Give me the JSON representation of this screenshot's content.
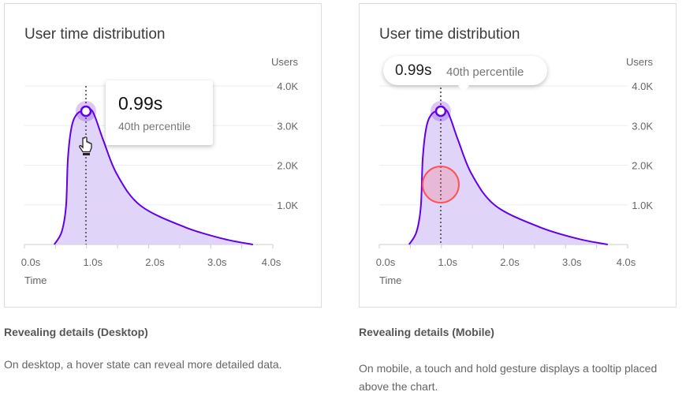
{
  "chart_data": [
    {
      "type": "area",
      "title": "User time distribution",
      "xlabel": "Time",
      "ylabel": "Users",
      "x_ticks": [
        "0.0s",
        "1.0s",
        "2.0s",
        "3.0s",
        "4.0s"
      ],
      "y_ticks": [
        "1.0K",
        "2.0K",
        "3.0K",
        "4.0K"
      ],
      "xlim": [
        0,
        4
      ],
      "ylim": [
        0,
        4000
      ],
      "grid": true,
      "x": [
        0.48,
        0.6,
        0.67,
        0.7,
        0.76,
        0.85,
        0.98,
        1.1,
        1.27,
        1.49,
        1.87,
        2.58,
        3.21,
        3.68
      ],
      "y": [
        0,
        320,
        970,
        2170,
        2970,
        3300,
        3380,
        3350,
        2630,
        1770,
        980,
        440,
        140,
        0
      ],
      "highlight": {
        "x": 0.99,
        "label": "0.99s",
        "sublabel": "40th percentile"
      }
    },
    {
      "type": "area",
      "title": "User time distribution",
      "xlabel": "Time",
      "ylabel": "Users",
      "x_ticks": [
        "0.0s",
        "1.0s",
        "2.0s",
        "3.0s",
        "4.0s"
      ],
      "y_ticks": [
        "1.0K",
        "2.0K",
        "3.0K",
        "4.0K"
      ],
      "xlim": [
        0,
        4
      ],
      "ylim": [
        0,
        4000
      ],
      "grid": true,
      "x": [
        0.48,
        0.6,
        0.67,
        0.7,
        0.76,
        0.85,
        0.98,
        1.1,
        1.27,
        1.49,
        1.87,
        2.58,
        3.21,
        3.68
      ],
      "y": [
        0,
        320,
        970,
        2170,
        2970,
        3300,
        3380,
        3350,
        2630,
        1770,
        980,
        440,
        140,
        0
      ],
      "highlight": {
        "x": 0.99,
        "label": "0.99s",
        "sublabel": "40th percentile"
      }
    }
  ],
  "colors": {
    "line": "#6200ea",
    "fill": "#dcccf8",
    "touch": "#ff5252"
  },
  "captions": [
    {
      "title": "Revealing details (Desktop)",
      "text": "On desktop, a hover state can reveal more detailed data."
    },
    {
      "title": "Revealing details (Mobile)",
      "text": "On mobile, a touch and hold gesture displays a tooltip placed above the chart."
    }
  ]
}
